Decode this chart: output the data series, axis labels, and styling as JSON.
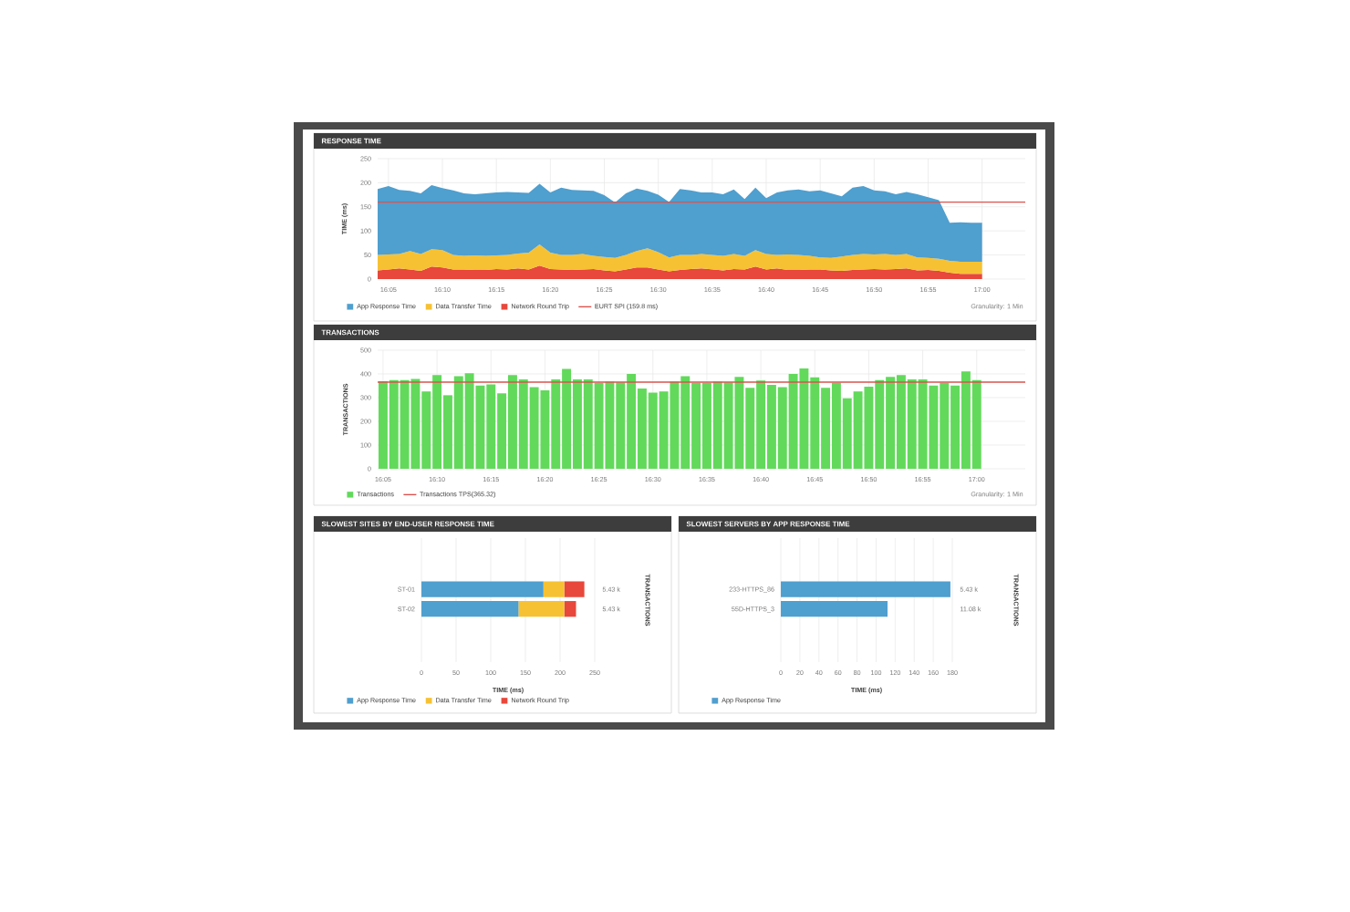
{
  "chart_data": [
    {
      "type": "area",
      "title": "RESPONSE TIME",
      "ylabel": "TIME (ms)",
      "stacked": true,
      "categories": [
        null,
        "16:05",
        null,
        null,
        null,
        null,
        "16:10",
        null,
        null,
        null,
        null,
        "16:15",
        null,
        null,
        null,
        null,
        "16:20",
        null,
        null,
        null,
        null,
        "16:25",
        null,
        null,
        null,
        null,
        "16:30",
        null,
        null,
        null,
        null,
        "16:35",
        null,
        null,
        null,
        null,
        "16:40",
        null,
        null,
        null,
        null,
        "16:45",
        null,
        null,
        null,
        null,
        "16:50",
        null,
        null,
        null,
        null,
        "16:55",
        null,
        null,
        null,
        null,
        "17:00",
        null,
        null,
        null,
        null
      ],
      "series": [
        {
          "name": "Network Round Trip",
          "color": "#e8473b",
          "values": [
            18,
            20,
            22,
            20,
            17,
            26,
            24,
            20,
            20,
            19,
            19,
            21,
            20,
            22,
            20,
            28,
            21,
            20,
            19,
            20,
            21,
            18,
            16,
            20,
            24,
            24,
            20,
            16,
            19,
            21,
            22,
            20,
            18,
            21,
            20,
            26,
            20,
            22,
            19,
            19,
            20,
            20,
            18,
            17,
            19,
            20,
            21,
            20,
            21,
            22,
            18,
            19,
            17,
            13,
            11,
            11,
            11,
            null,
            null,
            null,
            null
          ]
        },
        {
          "name": "Data Transfer Time",
          "color": "#f6c233",
          "values": [
            32,
            31,
            30,
            38,
            35,
            36,
            36,
            30,
            28,
            30,
            29,
            28,
            30,
            31,
            35,
            44,
            34,
            30,
            31,
            32,
            27,
            28,
            28,
            30,
            34,
            40,
            36,
            29,
            31,
            29,
            30,
            30,
            30,
            31,
            28,
            34,
            32,
            28,
            32,
            31,
            28,
            25,
            26,
            30,
            31,
            32,
            30,
            32,
            29,
            30,
            27,
            25,
            25,
            25,
            25,
            25,
            25,
            null,
            null,
            null,
            null
          ]
        },
        {
          "name": "App Response Time",
          "color": "#4f9fcf",
          "values": [
            137,
            142,
            133,
            125,
            126,
            133,
            129,
            134,
            130,
            127,
            130,
            131,
            131,
            127,
            124,
            126,
            125,
            140,
            135,
            132,
            135,
            128,
            115,
            128,
            130,
            119,
            119,
            115,
            137,
            134,
            128,
            130,
            128,
            134,
            118,
            130,
            116,
            130,
            133,
            136,
            134,
            139,
            134,
            125,
            140,
            141,
            133,
            130,
            126,
            129,
            131,
            126,
            122,
            79,
            82,
            81,
            81,
            null,
            null,
            null,
            null
          ]
        }
      ],
      "ylim": [
        0,
        250
      ],
      "yticks": [
        0,
        50,
        100,
        150,
        200,
        250
      ],
      "grid": true,
      "legend": "bottom left",
      "ref_lines": [
        {
          "axis": "y",
          "value": 159.8,
          "label": "EURT SPI (159.8 ms)",
          "color": "#d9534f"
        }
      ],
      "annotations": [
        "Granularity: 1 Min"
      ]
    },
    {
      "type": "bar",
      "title": "TRANSACTIONS",
      "ylabel": "TRANSACTIONS",
      "categories": [
        "16:05",
        null,
        null,
        null,
        null,
        "16:10",
        null,
        null,
        null,
        null,
        "16:15",
        null,
        null,
        null,
        null,
        "16:20",
        null,
        null,
        null,
        null,
        "16:25",
        null,
        null,
        null,
        null,
        "16:30",
        null,
        null,
        null,
        null,
        "16:35",
        null,
        null,
        null,
        null,
        "16:40",
        null,
        null,
        null,
        null,
        "16:45",
        null,
        null,
        null,
        null,
        "16:50",
        null,
        null,
        null,
        null,
        "16:55",
        null,
        null,
        null,
        null,
        "17:00",
        null,
        null,
        null,
        null
      ],
      "series": [
        {
          "name": "Transactions",
          "color": "#62d95b",
          "values": [
            369,
            374,
            374,
            379,
            326,
            395,
            310,
            390,
            403,
            351,
            356,
            318,
            395,
            377,
            344,
            331,
            377,
            421,
            377,
            377,
            362,
            367,
            364,
            400,
            338,
            321,
            326,
            367,
            390,
            362,
            362,
            367,
            364,
            387,
            341,
            372,
            354,
            344,
            400,
            423,
            385,
            341,
            362,
            297,
            326,
            346,
            374,
            387,
            395,
            377,
            377,
            351,
            362,
            351,
            410,
            374,
            null,
            null,
            null,
            null
          ]
        }
      ],
      "ylim": [
        0,
        500
      ],
      "yticks": [
        0,
        100,
        200,
        300,
        400,
        500
      ],
      "grid": true,
      "legend": "bottom left",
      "ref_lines": [
        {
          "axis": "y",
          "value": 365.32,
          "label": "Transactions TPS(365.32)",
          "color": "#d9534f"
        }
      ],
      "annotations": [
        "Granularity: 1 Min"
      ]
    },
    {
      "type": "bar",
      "orientation": "horizontal",
      "stacked": true,
      "title": "SLOWEST SITES BY END-USER RESPONSE TIME",
      "xlabel": "TIME (ms)",
      "y2label": "TRANSACTIONS",
      "categories": [
        "ST-01",
        "ST-02"
      ],
      "series": [
        {
          "name": "App Response Time",
          "color": "#4f9fcf",
          "values": [
            176,
            140
          ]
        },
        {
          "name": "Data Transfer Time",
          "color": "#f6c233",
          "values": [
            30,
            66
          ]
        },
        {
          "name": "Network Round Trip",
          "color": "#e8473b",
          "values": [
            29,
            17
          ]
        }
      ],
      "xlim": [
        0,
        250
      ],
      "xticks": [
        0,
        50,
        100,
        150,
        200,
        250
      ],
      "grid": "x",
      "legend": "bottom left",
      "annotations": [
        "5.43 k",
        "5.43 k"
      ]
    },
    {
      "type": "bar",
      "orientation": "horizontal",
      "title": "SLOWEST SERVERS BY APP RESPONSE TIME",
      "xlabel": "TIME (ms)",
      "y2label": "TRANSACTIONS",
      "categories": [
        "233-HTTPS_86",
        "55D-HTTPS_3"
      ],
      "series": [
        {
          "name": "App Response Time",
          "color": "#4f9fcf",
          "values": [
            178,
            112
          ]
        }
      ],
      "xlim": [
        0,
        180
      ],
      "xticks": [
        0,
        20,
        40,
        60,
        80,
        100,
        120,
        140,
        160,
        180
      ],
      "grid": "x",
      "legend": "bottom left",
      "annotations": [
        "5.43 k",
        "11.08 k"
      ]
    }
  ]
}
